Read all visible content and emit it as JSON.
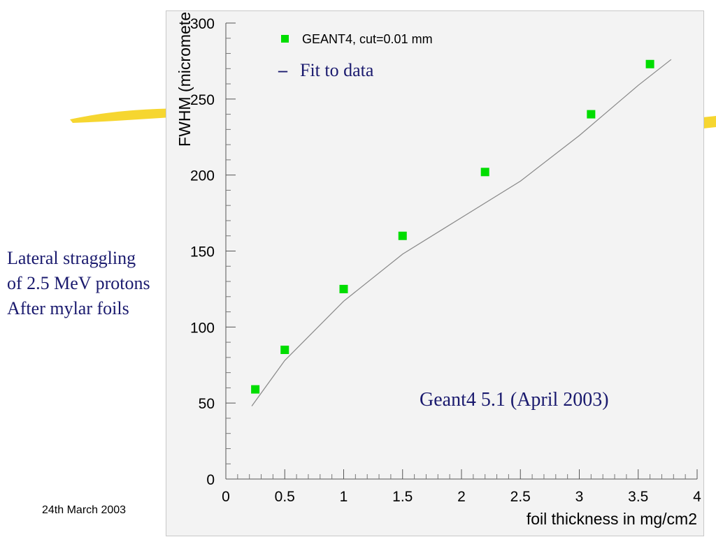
{
  "slide": {
    "caption_lines": [
      "Lateral straggling",
      "of 2.5 MeV protons",
      "After mylar foils"
    ],
    "fit_legend_label": "Fit to data",
    "version_note": "Geant4 5.1 (April 2003)",
    "footer_date": "24th March 2003"
  },
  "colors": {
    "text": "#1a1a6e",
    "marker": "#00dd00",
    "fit_line": "#888888",
    "highlight_stroke": "#f5d11a"
  },
  "chart_data": {
    "type": "scatter",
    "xlabel": "foil thickness in mg/cm2",
    "ylabel": "FWHM (micromete",
    "xlim": [
      0,
      4
    ],
    "ylim": [
      0,
      300
    ],
    "x_ticks": [
      "0",
      "0.5",
      "1",
      "1.5",
      "2",
      "2.5",
      "3",
      "3.5",
      "4"
    ],
    "y_ticks": [
      "0",
      "50",
      "100",
      "150",
      "200",
      "250",
      "300"
    ],
    "series": [
      {
        "name": "GEANT4, cut=0.01 mm",
        "marker": "square",
        "x": [
          0.25,
          0.5,
          1.0,
          1.5,
          2.2,
          3.1,
          3.6
        ],
        "y": [
          59,
          85,
          125,
          160,
          202,
          240,
          273
        ]
      }
    ],
    "fit": {
      "x": [
        0.22,
        0.5,
        1.0,
        1.5,
        2.0,
        2.5,
        3.0,
        3.5,
        3.78
      ],
      "y": [
        48,
        78,
        117,
        148,
        172,
        196,
        226,
        259,
        276
      ]
    },
    "grid": false,
    "legend": "top-left"
  }
}
